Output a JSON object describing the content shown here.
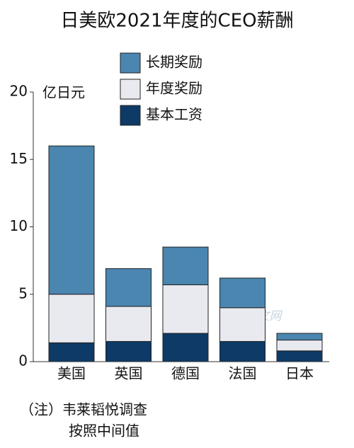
{
  "chart_data": {
    "type": "stacked_bar",
    "title": "日美欧2021年度的CEO薪酬",
    "y_label": "亿日元",
    "categories": [
      "美国",
      "英国",
      "德国",
      "法国",
      "日本"
    ],
    "series": [
      {
        "name": "基本工资",
        "color": "#0d3a66",
        "values": [
          1.4,
          1.5,
          2.1,
          1.5,
          0.8
        ]
      },
      {
        "name": "年度奖励",
        "color": "#e9e9f0",
        "values": [
          3.6,
          2.6,
          3.6,
          2.5,
          0.8
        ]
      },
      {
        "name": "长期奖励",
        "color": "#4a86b0",
        "values": [
          11,
          2.8,
          2.8,
          2.2,
          0.5
        ]
      }
    ],
    "ylim": [
      0,
      20
    ],
    "yticks": [
      0,
      5,
      10,
      15,
      20
    ],
    "notes": [
      "（注）韦莱韬悦调查",
      "按照中间值"
    ],
    "watermark": "日经中文网"
  }
}
